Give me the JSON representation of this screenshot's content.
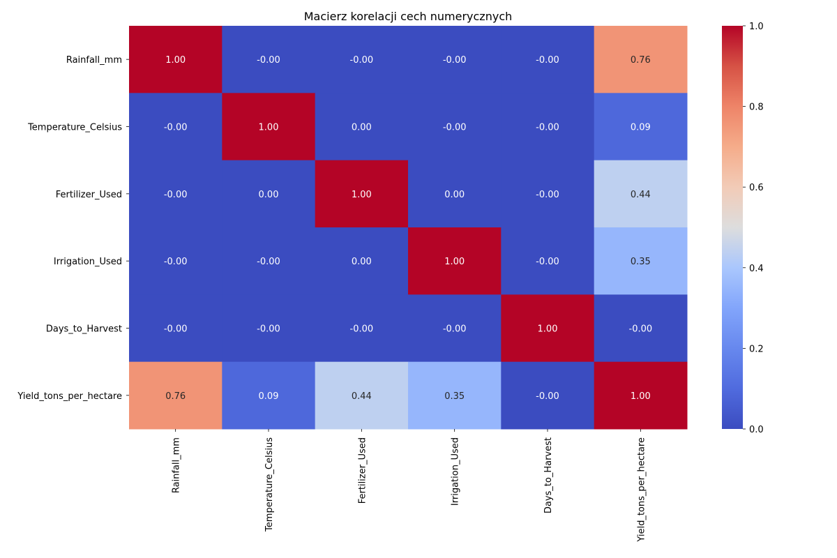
{
  "chart_data": {
    "type": "heatmap",
    "title": "Macierz korelacji cech numerycznych",
    "row_labels": [
      "Rainfall_mm",
      "Temperature_Celsius",
      "Fertilizer_Used",
      "Irrigation_Used",
      "Days_to_Harvest",
      "Yield_tons_per_hectare"
    ],
    "col_labels": [
      "Rainfall_mm",
      "Temperature_Celsius",
      "Fertilizer_Used",
      "Irrigation_Used",
      "Days_to_Harvest",
      "Yield_tons_per_hectare"
    ],
    "values": [
      [
        1.0,
        -0.0,
        -0.0,
        -0.0,
        -0.0,
        0.76
      ],
      [
        -0.0,
        1.0,
        0.0,
        -0.0,
        -0.0,
        0.09
      ],
      [
        -0.0,
        0.0,
        1.0,
        0.0,
        -0.0,
        0.44
      ],
      [
        -0.0,
        -0.0,
        0.0,
        1.0,
        -0.0,
        0.35
      ],
      [
        -0.0,
        -0.0,
        -0.0,
        -0.0,
        1.0,
        -0.0
      ],
      [
        0.76,
        0.09,
        0.44,
        0.35,
        -0.0,
        1.0
      ]
    ],
    "annotations": [
      [
        "1.00",
        "-0.00",
        "-0.00",
        "-0.00",
        "-0.00",
        "0.76"
      ],
      [
        "-0.00",
        "1.00",
        "0.00",
        "-0.00",
        "-0.00",
        "0.09"
      ],
      [
        "-0.00",
        "0.00",
        "1.00",
        "0.00",
        "-0.00",
        "0.44"
      ],
      [
        "-0.00",
        "-0.00",
        "0.00",
        "1.00",
        "-0.00",
        "0.35"
      ],
      [
        "-0.00",
        "-0.00",
        "-0.00",
        "-0.00",
        "1.00",
        "-0.00"
      ],
      [
        "0.76",
        "0.09",
        "0.44",
        "0.35",
        "-0.00",
        "1.00"
      ]
    ],
    "colormap": "coolwarm",
    "colorbar": {
      "range": [
        0.0,
        1.0
      ],
      "ticks": [
        "0.0",
        "0.2",
        "0.4",
        "0.6",
        "0.8",
        "1.0"
      ],
      "placement": "right"
    },
    "grid": false
  }
}
